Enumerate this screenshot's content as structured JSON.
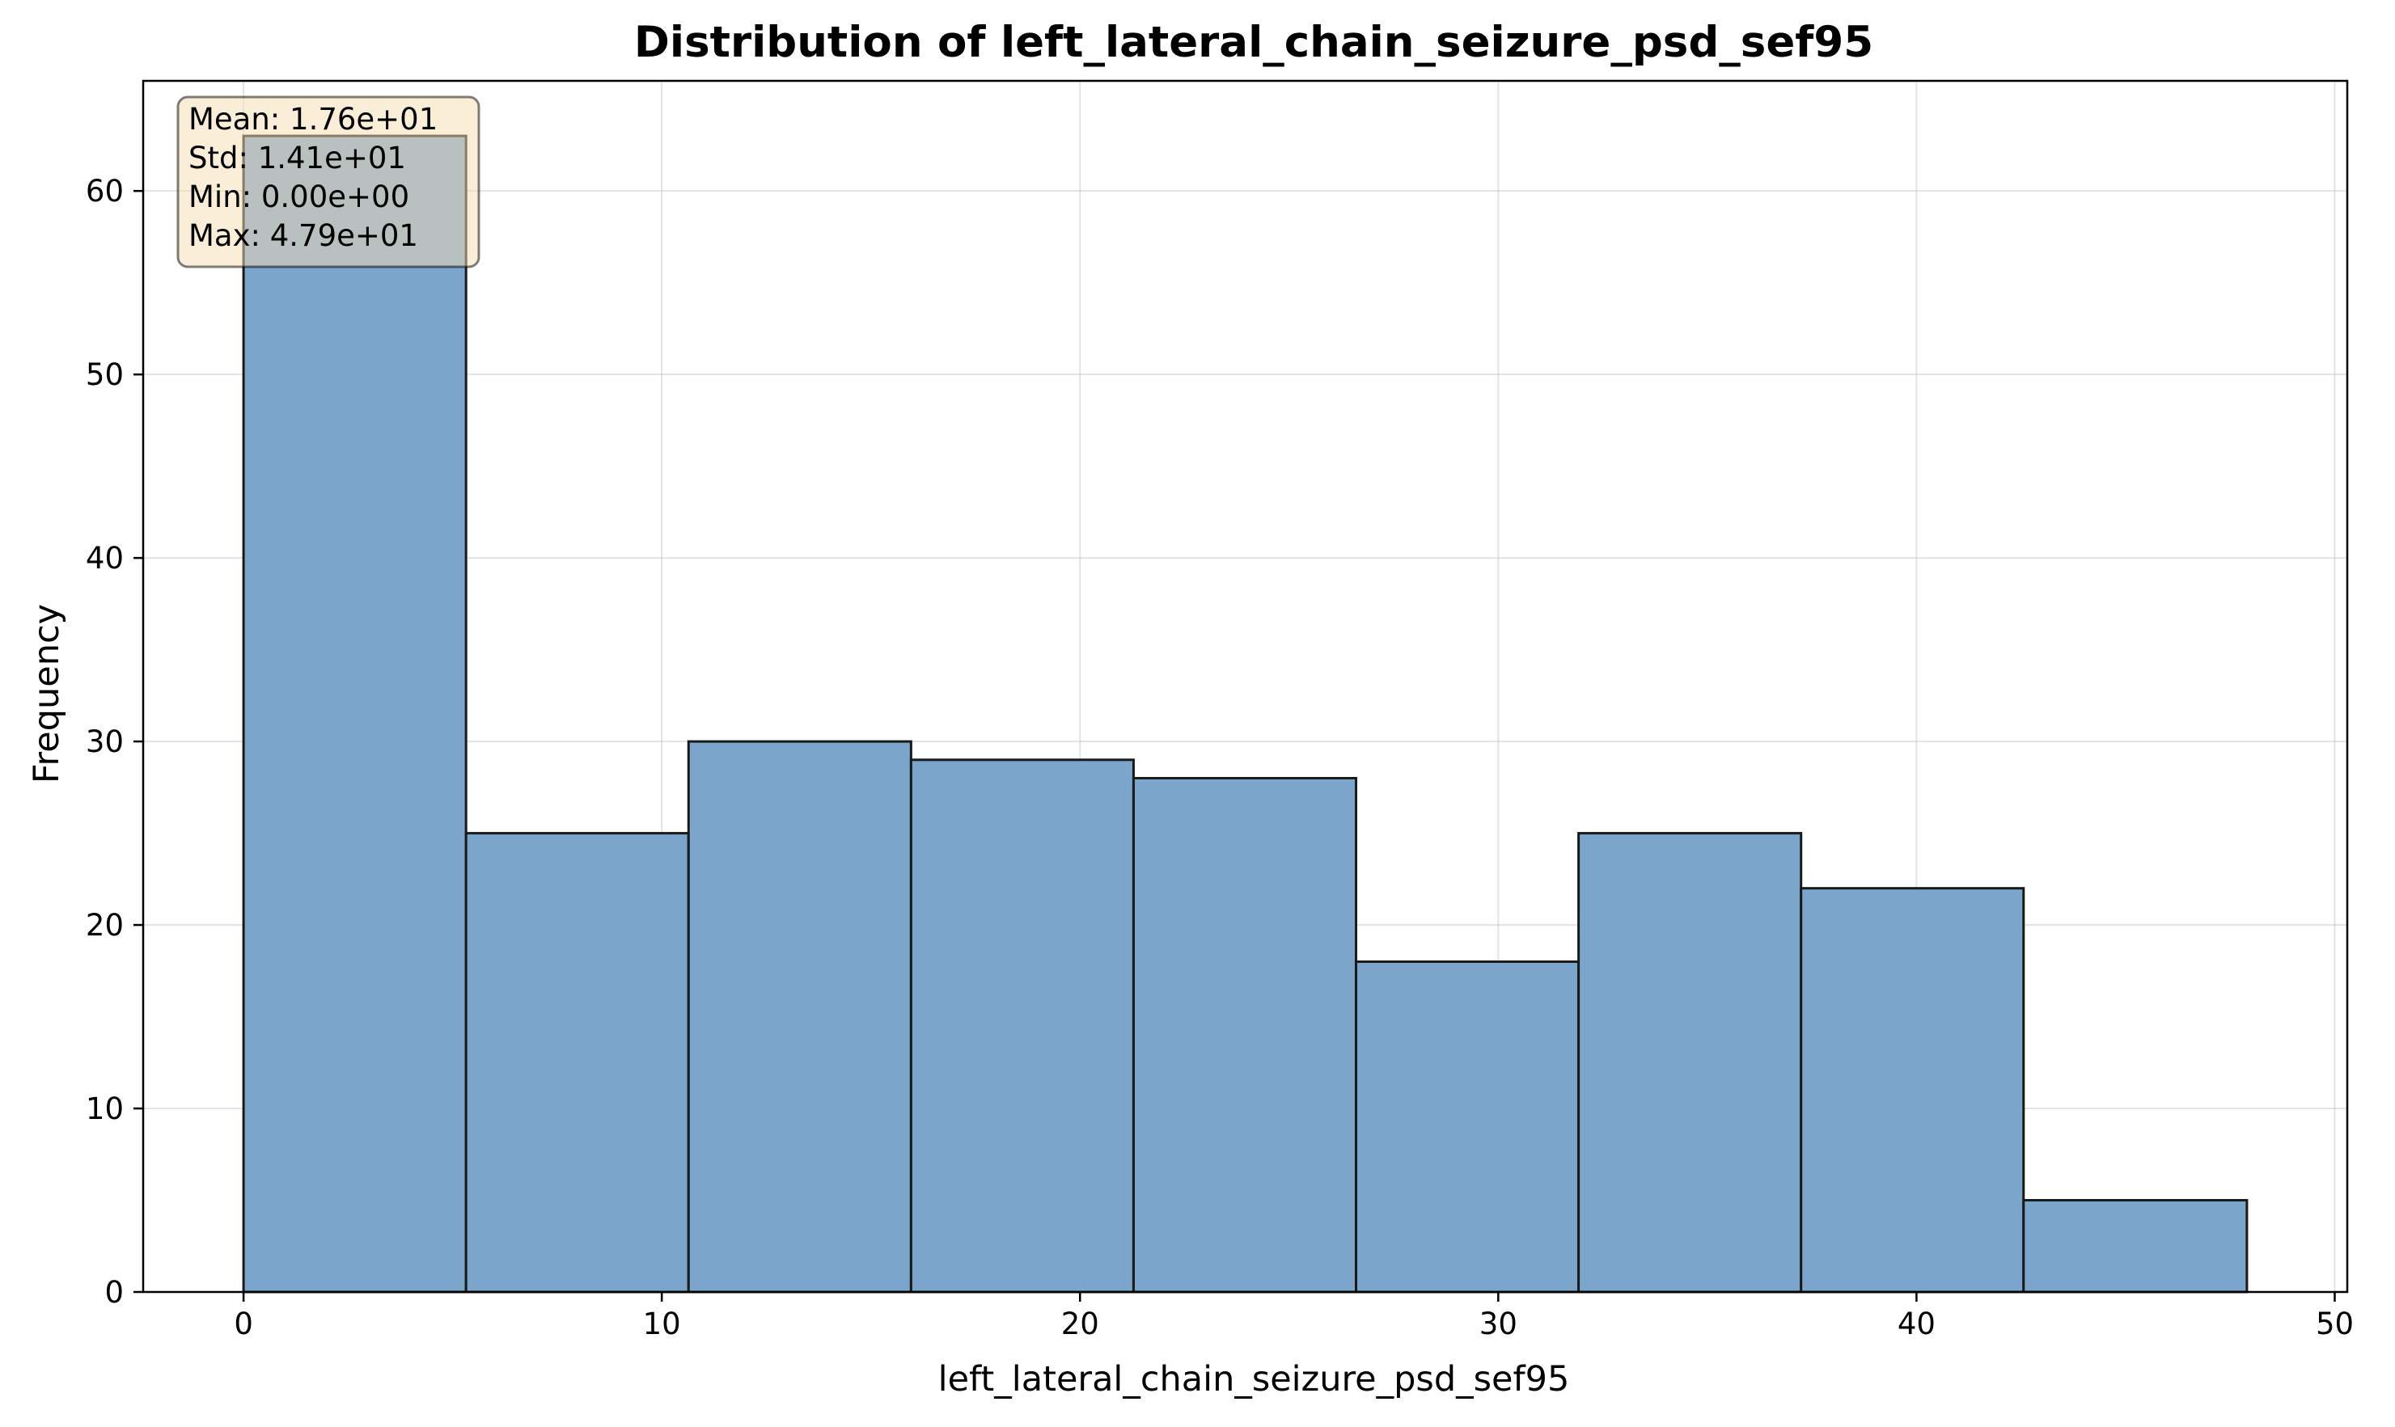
{
  "chart_data": {
    "type": "bar",
    "title": "Distribution of left_lateral_chain_seizure_psd_sef95",
    "xlabel": "left_lateral_chain_seizure_psd_sef95",
    "ylabel": "Frequency",
    "xlim": [
      -2.4,
      50.3
    ],
    "ylim": [
      0,
      66
    ],
    "xticks": [
      0,
      10,
      20,
      30,
      40,
      50
    ],
    "yticks": [
      0,
      10,
      20,
      30,
      40,
      50,
      60
    ],
    "grid": true,
    "bin_edges": [
      0,
      5.32,
      10.64,
      15.96,
      21.28,
      26.6,
      31.92,
      37.24,
      42.56,
      47.9
    ],
    "values": [
      63,
      25,
      30,
      29,
      28,
      18,
      25,
      22,
      5
    ],
    "bar_color": "#7BA5CB",
    "edge_color": "#1a1a1a",
    "stats_box": {
      "lines": [
        "Mean: 1.76e+01",
        "Std: 1.41e+01",
        "Min: 0.00e+00",
        "Max: 4.79e+01"
      ],
      "placement": "top-left",
      "background": "#F5DEB3"
    }
  }
}
